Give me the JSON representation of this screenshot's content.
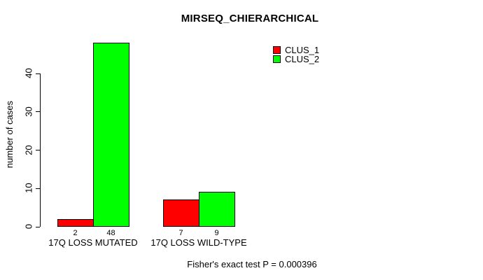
{
  "chart_data": {
    "type": "bar",
    "title": "MIRSEQ_CHIERARCHICAL",
    "xlabel": "",
    "ylabel": "number of cases",
    "categories": [
      "17Q LOSS MUTATED",
      "17Q LOSS WILD-TYPE"
    ],
    "series": [
      {
        "name": "CLUS_1",
        "color": "#FF0000",
        "values": [
          2,
          7
        ]
      },
      {
        "name": "CLUS_2",
        "color": "#00FF00",
        "values": [
          48,
          9
        ]
      }
    ],
    "bar_value_labels": [
      [
        2,
        48
      ],
      [
        7,
        9
      ]
    ],
    "yticks": [
      0,
      10,
      20,
      30,
      40
    ],
    "ylim": [
      0,
      48
    ],
    "grid": false,
    "legend_position": "top-right",
    "bar_border_color": "#000000",
    "background_color": "#FFFFFF",
    "annotation": "Fisher's exact test P = 0.000396"
  }
}
